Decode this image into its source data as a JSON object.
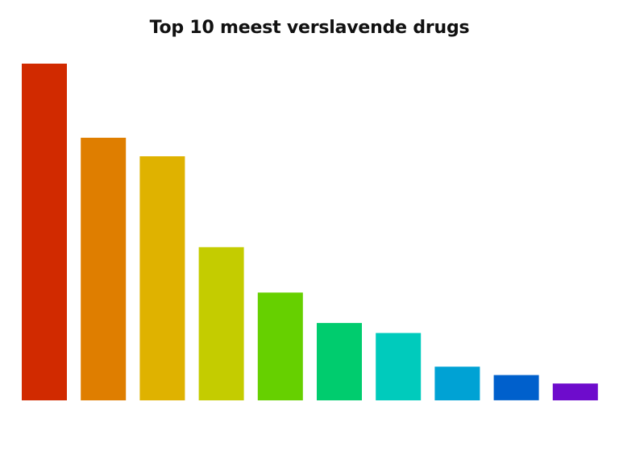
{
  "chart_data": {
    "type": "bar",
    "title": "Top 10 meest verslavende drugs",
    "xlabel": "",
    "ylabel": "",
    "ylim": [
      0,
      100
    ],
    "grid": false,
    "legend": "none",
    "categories": [
      "",
      "",
      "",
      "",
      "",
      "",
      "",
      "",
      "",
      ""
    ],
    "values": [
      100,
      78,
      72.5,
      45.5,
      32,
      23,
      20,
      10,
      7.5,
      5
    ],
    "colors": [
      "#d12a00",
      "#df7e00",
      "#dfb200",
      "#c4cc00",
      "#66d000",
      "#00cc6e",
      "#00cbbc",
      "#00a2d4",
      "#0060cc",
      "#6e0ccc"
    ]
  }
}
